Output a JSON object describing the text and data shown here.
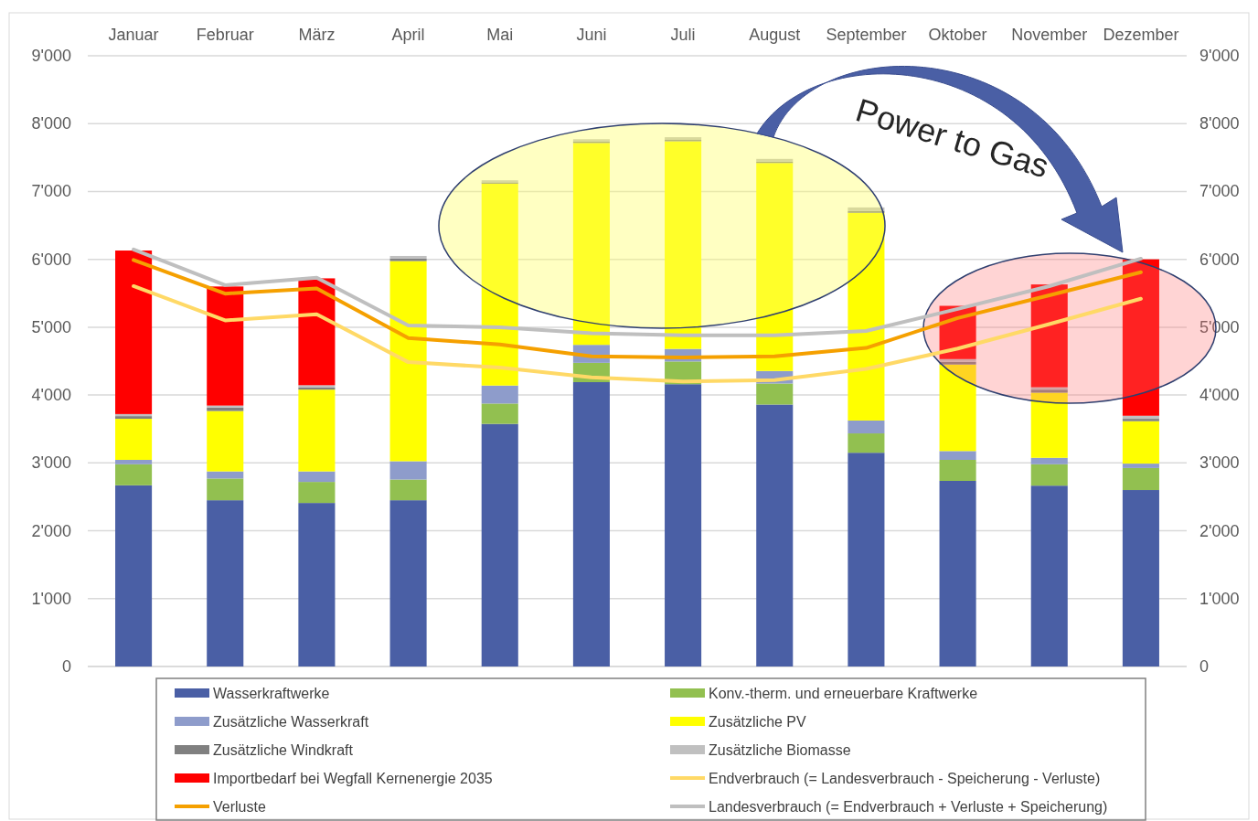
{
  "chart_data": {
    "type": "bar",
    "stacked": true,
    "categories": [
      "Januar",
      "Februar",
      "März",
      "April",
      "Mai",
      "Juni",
      "Juli",
      "August",
      "September",
      "Oktober",
      "November",
      "Dezember"
    ],
    "series": [
      {
        "name": "Wasserkraftwerke",
        "color": "#4a5fa5",
        "values": [
          2670,
          2450,
          2410,
          2450,
          3575,
          4190,
          4160,
          3860,
          3150,
          2735,
          2665,
          2600
        ]
      },
      {
        "name": "Konv.-therm. und erneuerbare Kraftwerke",
        "color": "#92c050",
        "values": [
          310,
          320,
          310,
          305,
          300,
          285,
          335,
          310,
          285,
          310,
          315,
          325
        ]
      },
      {
        "name": "Zusätzliche Wasserkraft",
        "color": "#8e9ccb",
        "values": [
          65,
          105,
          155,
          270,
          265,
          265,
          185,
          185,
          190,
          130,
          95,
          65
        ]
      },
      {
        "name": "Zusätzliche PV",
        "color": "#ffff00",
        "values": [
          605,
          890,
          1205,
          2950,
          2975,
          2975,
          3060,
          3065,
          3060,
          1275,
          960,
          625
        ]
      },
      {
        "name": "Zusätzliche Windkraft",
        "color": "#808080",
        "values": [
          40,
          50,
          30,
          35,
          20,
          20,
          20,
          20,
          30,
          40,
          45,
          35
        ]
      },
      {
        "name": "Zusätzliche Biomasse",
        "color": "#c0c0c0",
        "values": [
          30,
          30,
          35,
          40,
          30,
          35,
          40,
          40,
          50,
          40,
          35,
          45
        ]
      },
      {
        "name": "Importbedarf bei Wegfall Kernenergie 2035",
        "color": "#ff0000",
        "values": [
          2410,
          1755,
          1575,
          null,
          null,
          null,
          null,
          null,
          null,
          785,
          1515,
          2305
        ]
      },
      {
        "name": "Endverbrauch (= Landesverbrauch - Speicherung - Verluste)",
        "type": "line",
        "color": "#ffd966",
        "values": [
          5605,
          5100,
          5190,
          4485,
          4405,
          4260,
          4200,
          4220,
          4385,
          4685,
          5045,
          5420
        ]
      },
      {
        "name": "Verluste",
        "type": "line",
        "color": "#f5a000",
        "values": [
          5990,
          5495,
          5570,
          4840,
          4745,
          4570,
          4555,
          4570,
          4695,
          5135,
          5470,
          5810
        ]
      },
      {
        "name": "Landesverbrauch (= Endverbrauch + Verluste + Speicherung)",
        "type": "line",
        "color": "#bfbfbf",
        "values": [
          6145,
          5620,
          5730,
          5025,
          5000,
          4910,
          4880,
          4880,
          4945,
          5270,
          5605,
          6010
        ]
      }
    ],
    "ylim": [
      0,
      9000
    ],
    "yticks": [
      0,
      {
        "value": 1000,
        "label": "1'000"
      },
      {
        "value": 2000,
        "label": "2'000"
      },
      {
        "value": 3000,
        "label": "3'000"
      },
      {
        "value": 4000,
        "label": "4'000"
      },
      {
        "value": 5000,
        "label": "5'000"
      },
      {
        "value": 6000,
        "label": "6'000"
      },
      {
        "value": 7000,
        "label": "7'000"
      },
      {
        "value": 8000,
        "label": "8'000"
      },
      {
        "value": 9000,
        "label": "9'000"
      }
    ],
    "y2lim": [
      0,
      9000
    ],
    "y2ticks": [
      0,
      {
        "value": 1000,
        "label": "1'000"
      },
      {
        "value": 2000,
        "label": "2'000"
      },
      {
        "value": 3000,
        "label": "3'000"
      },
      {
        "value": 4000,
        "label": "4'000"
      },
      {
        "value": 5000,
        "label": "5'000"
      },
      {
        "value": 6000,
        "label": "6'000"
      },
      {
        "value": 7000,
        "label": "7'000"
      },
      {
        "value": 8000,
        "label": "8'000"
      },
      {
        "value": 9000,
        "label": "9'000"
      }
    ],
    "grid": "y",
    "legend": "bottom",
    "marker": "none",
    "line_style": "solid",
    "annotations": [
      "Power to Gas"
    ]
  }
}
